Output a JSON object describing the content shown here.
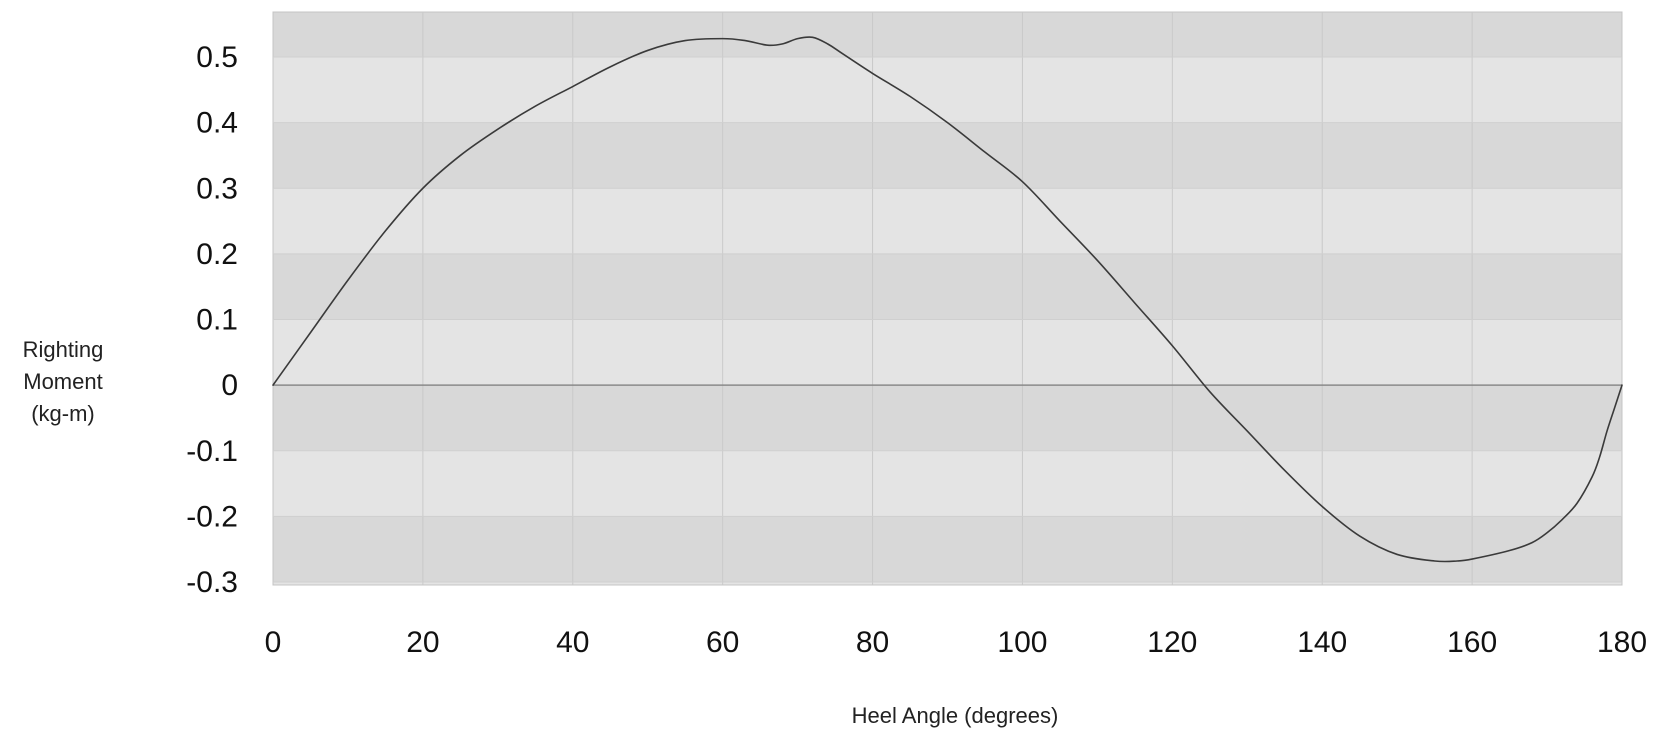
{
  "chart_data": {
    "type": "line",
    "title": "",
    "xlabel": "Heel Angle (degrees)",
    "ylabel_lines": [
      "Righting",
      "Moment",
      "(kg-m)"
    ],
    "xlim": [
      0,
      180
    ],
    "ylim": [
      -0.3,
      0.5
    ],
    "x_ticks": [
      0,
      20,
      40,
      60,
      80,
      100,
      120,
      140,
      160,
      180
    ],
    "y_ticks": [
      0.5,
      0.4,
      0.3,
      0.2,
      0.1,
      0,
      -0.1,
      -0.2,
      -0.3
    ],
    "y_tick_labels": [
      "0.5",
      "0.4",
      "0.3",
      "0.2",
      "0.1",
      "0",
      "-0.1",
      "-0.2",
      "-0.3"
    ],
    "grid": true,
    "colors": {
      "band_dark": "#d8d8d8",
      "band_light": "#e4e4e4",
      "line": "#3a3a3a",
      "zero_line": "#8a8a8a"
    },
    "series": [
      {
        "x": [
          0,
          5,
          10,
          15,
          20,
          25,
          30,
          35,
          40,
          45,
          50,
          55,
          60,
          63,
          66,
          68,
          70,
          72,
          74,
          76,
          80,
          85,
          90,
          95,
          100,
          105,
          110,
          115,
          120,
          125,
          130,
          135,
          140,
          145,
          150,
          155,
          158,
          160,
          165,
          168,
          170,
          172,
          174,
          176,
          177,
          178,
          179,
          180
        ],
        "y": [
          0,
          0.08,
          0.16,
          0.235,
          0.3,
          0.35,
          0.39,
          0.425,
          0.455,
          0.485,
          0.51,
          0.525,
          0.528,
          0.525,
          0.518,
          0.52,
          0.528,
          0.53,
          0.52,
          0.505,
          0.475,
          0.44,
          0.4,
          0.355,
          0.31,
          0.25,
          0.19,
          0.125,
          0.06,
          -0.01,
          -0.07,
          -0.13,
          -0.185,
          -0.23,
          -0.258,
          -0.268,
          -0.268,
          -0.265,
          -0.252,
          -0.24,
          -0.225,
          -0.205,
          -0.18,
          -0.14,
          -0.11,
          -0.07,
          -0.035,
          0
        ]
      }
    ]
  }
}
